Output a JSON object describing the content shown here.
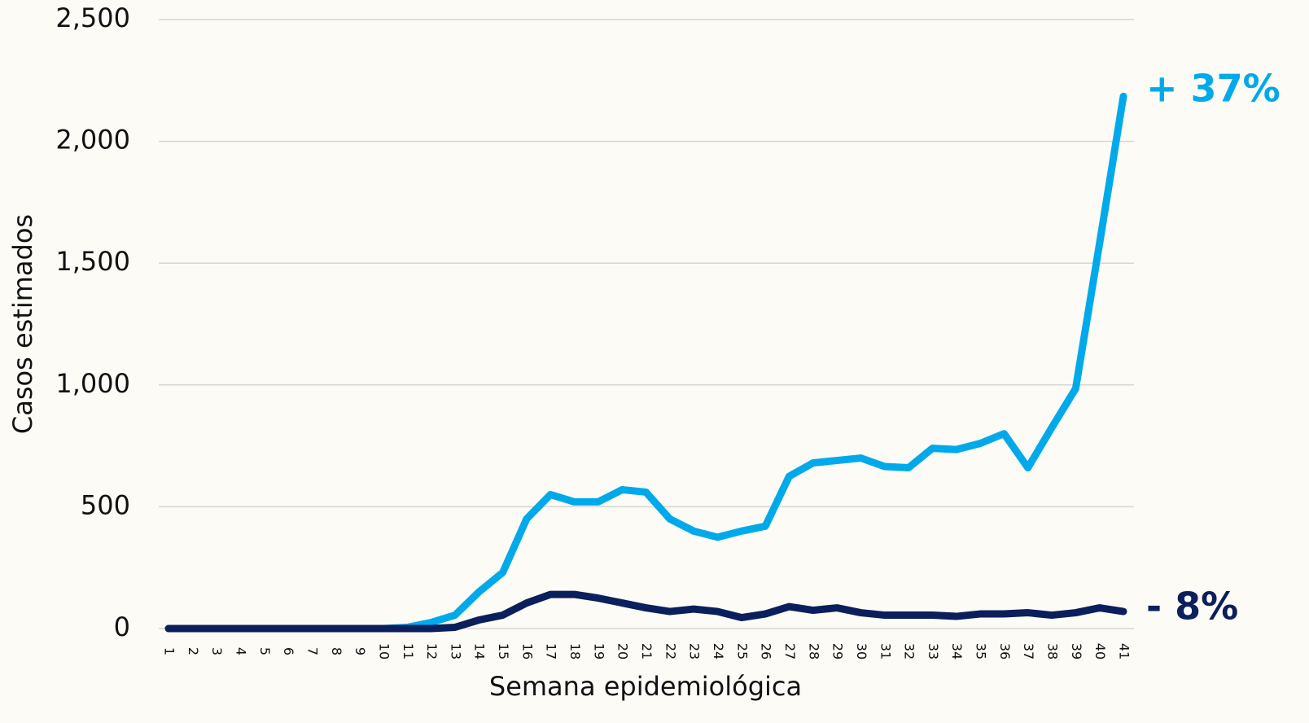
{
  "chart_data": {
    "type": "line",
    "y_label": "Casos estimados",
    "x_label": "Semana epidemiológica",
    "categories": [
      "1",
      "2",
      "3",
      "4",
      "5",
      "6",
      "7",
      "8",
      "9",
      "10",
      "11",
      "12",
      "13",
      "14",
      "15",
      "16",
      "17",
      "18",
      "19",
      "20",
      "21",
      "22",
      "23",
      "24",
      "25",
      "26",
      "27",
      "28",
      "29",
      "30",
      "31",
      "32",
      "33",
      "34",
      "35",
      "36",
      "37",
      "38",
      "39",
      "40",
      "41"
    ],
    "series": [
      {
        "color": "#00aaea",
        "values": [
          0,
          0,
          0,
          0,
          0,
          0,
          0,
          0,
          0,
          0,
          5,
          25,
          55,
          150,
          230,
          450,
          550,
          520,
          520,
          570,
          560,
          450,
          400,
          375,
          400,
          420,
          625,
          680,
          690,
          700,
          665,
          660,
          740,
          735,
          760,
          800,
          660,
          825,
          985,
          1580,
          2185
        ]
      },
      {
        "color": "#0b1f5c",
        "values": [
          0,
          0,
          0,
          0,
          0,
          0,
          0,
          0,
          0,
          0,
          0,
          0,
          5,
          35,
          55,
          105,
          140,
          140,
          125,
          105,
          85,
          70,
          80,
          70,
          45,
          60,
          90,
          75,
          85,
          65,
          55,
          55,
          55,
          50,
          60,
          60,
          65,
          55,
          65,
          85,
          70
        ]
      }
    ],
    "annotations": [
      "+ 37%",
      "- 8%"
    ],
    "ylim": [
      0,
      2500
    ],
    "yticks": [
      0,
      500,
      {
        "value": 1000,
        "label": "1,000"
      },
      {
        "value": 1500,
        "label": "1,500"
      },
      {
        "value": 2000,
        "label": "2,000"
      },
      {
        "value": 2500,
        "label": "2,500"
      }
    ],
    "grid": true
  }
}
